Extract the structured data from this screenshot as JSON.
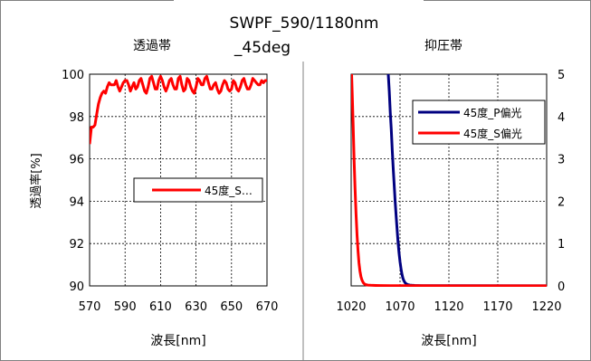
{
  "title_line1": "SWPF_590/1180nm",
  "title_line2": "_45deg",
  "colors": {
    "s_pol": "#ff0000",
    "p_pol": "#000080",
    "grid": "#000000",
    "frame": "#808080"
  },
  "chart_data": [
    {
      "type": "line",
      "title": "透過帯",
      "xlabel": "波長[nm]",
      "ylabel": "透過率[%]",
      "xlim": [
        570,
        670
      ],
      "ylim": [
        90,
        100
      ],
      "xticks": [
        "570",
        "590",
        "610",
        "630",
        "650",
        "670"
      ],
      "yticks": [
        "90",
        "92",
        "94",
        "96",
        "98",
        "100"
      ],
      "grid": true,
      "legend": "middle-right",
      "series": [
        {
          "name": "45度_S…",
          "color": "#ff0000",
          "x": [
            570,
            571,
            572,
            573,
            574,
            575,
            576,
            577,
            578,
            579,
            580,
            581,
            582,
            583,
            584,
            585,
            586,
            587,
            588,
            589,
            590,
            591,
            592,
            593,
            594,
            595,
            596,
            597,
            598,
            599,
            600,
            601,
            602,
            603,
            604,
            605,
            606,
            607,
            608,
            609,
            610,
            611,
            612,
            613,
            614,
            615,
            616,
            617,
            618,
            619,
            620,
            621,
            622,
            623,
            624,
            625,
            626,
            627,
            628,
            629,
            630,
            631,
            632,
            633,
            634,
            635,
            636,
            637,
            638,
            639,
            640,
            641,
            642,
            643,
            644,
            645,
            646,
            647,
            648,
            649,
            650,
            651,
            652,
            653,
            654,
            655,
            656,
            657,
            658,
            659,
            660,
            661,
            662,
            663,
            664,
            665,
            666,
            667,
            668,
            669,
            670
          ],
          "values": [
            96.7,
            97.5,
            97.5,
            97.6,
            98.1,
            98.6,
            98.9,
            99.1,
            99.2,
            99.1,
            99.4,
            99.6,
            99.5,
            99.5,
            99.5,
            99.7,
            99.4,
            99.2,
            99.4,
            99.6,
            99.7,
            99.7,
            99.5,
            99.2,
            99.4,
            99.6,
            99.3,
            99.4,
            99.7,
            99.8,
            99.5,
            99.2,
            99.1,
            99.4,
            99.8,
            99.9,
            99.6,
            99.3,
            99.3,
            99.7,
            99.9,
            99.7,
            99.4,
            99.2,
            99.4,
            99.7,
            99.8,
            99.5,
            99.3,
            99.3,
            99.8,
            99.9,
            99.5,
            99.2,
            99.3,
            99.8,
            99.7,
            99.4,
            99.2,
            99.1,
            99.4,
            99.8,
            99.7,
            99.5,
            99.5,
            99.8,
            99.9,
            99.6,
            99.3,
            99.3,
            99.5,
            99.6,
            99.3,
            99.1,
            99.2,
            99.5,
            99.7,
            99.6,
            99.3,
            99.2,
            99.3,
            99.7,
            99.6,
            99.3,
            99.2,
            99.4,
            99.7,
            99.8,
            99.5,
            99.3,
            99.3,
            99.5,
            99.8,
            99.7,
            99.6,
            99.5,
            99.5,
            99.7,
            99.6,
            99.7,
            99.7
          ]
        }
      ]
    },
    {
      "type": "line",
      "title": "抑圧帯",
      "xlabel": "波長[nm]",
      "ylabel": "",
      "xlim": [
        1020,
        1220
      ],
      "ylim": [
        0,
        5
      ],
      "xticks": [
        "1020",
        "1070",
        "1120",
        "1170",
        "1220"
      ],
      "yticks": [
        "0",
        "1",
        "2",
        "3",
        "4",
        "5"
      ],
      "grid": true,
      "legend": "top-right",
      "series": [
        {
          "name": "45度_P偏光",
          "color": "#000080",
          "x": [
            1058,
            1059,
            1060,
            1061,
            1062,
            1063,
            1064,
            1065,
            1066,
            1067,
            1068,
            1069,
            1070,
            1071,
            1072,
            1073,
            1074,
            1075,
            1076,
            1077,
            1078,
            1080,
            1082,
            1085,
            1088,
            1092,
            1100,
            1120,
            1220
          ],
          "values": [
            5.0,
            4.6,
            4.1,
            3.7,
            3.2,
            2.8,
            2.4,
            2.0,
            1.65,
            1.32,
            1.03,
            0.78,
            0.57,
            0.4,
            0.27,
            0.18,
            0.12,
            0.08,
            0.055,
            0.04,
            0.03,
            0.02,
            0.015,
            0.01,
            0.008,
            0.006,
            0.005,
            0.004,
            0.003
          ]
        },
        {
          "name": "45度_S偏光",
          "color": "#ff0000",
          "x": [
            1020.5,
            1021,
            1022,
            1023,
            1024,
            1025,
            1026,
            1027,
            1028,
            1029,
            1030,
            1031,
            1032,
            1033,
            1034,
            1035,
            1037,
            1040,
            1045,
            1050,
            1060,
            1080,
            1120,
            1220
          ],
          "values": [
            5.0,
            4.6,
            3.8,
            3.0,
            2.3,
            1.7,
            1.2,
            0.82,
            0.55,
            0.35,
            0.22,
            0.14,
            0.09,
            0.06,
            0.04,
            0.03,
            0.02,
            0.015,
            0.01,
            0.008,
            0.005,
            0.004,
            0.003,
            0.002
          ]
        }
      ]
    }
  ]
}
